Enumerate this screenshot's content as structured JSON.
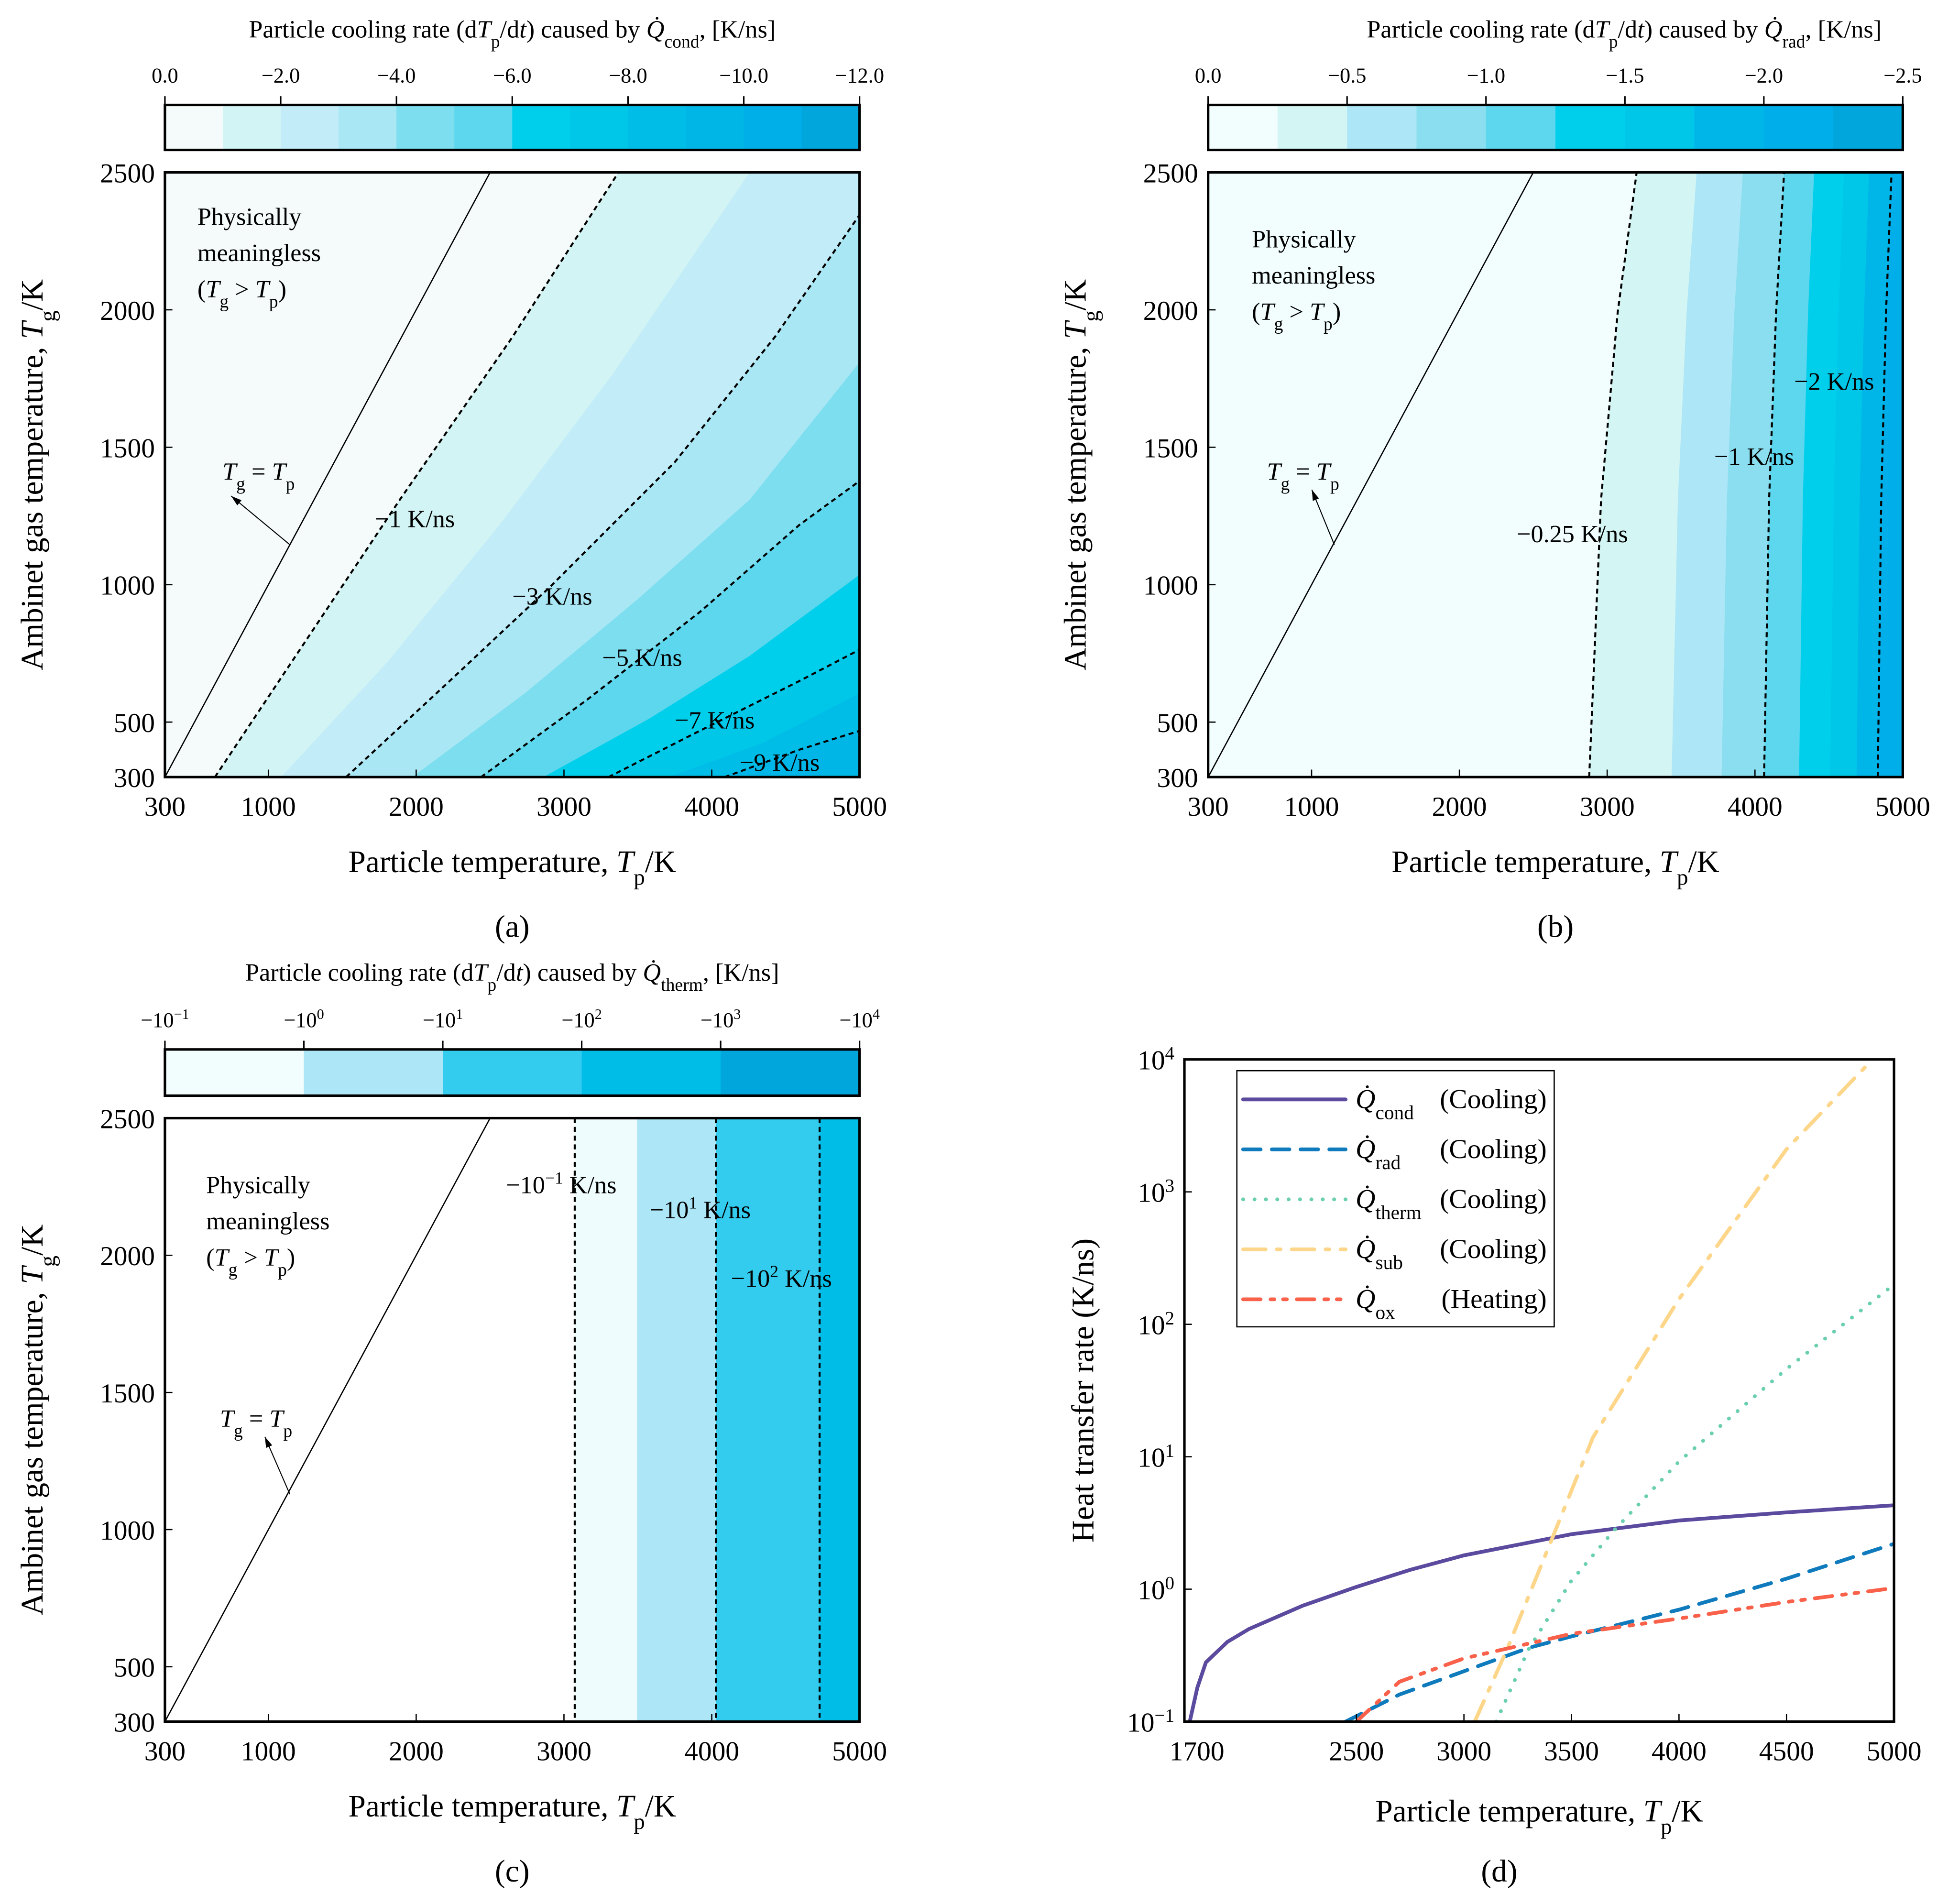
{
  "panels": {
    "a": {
      "label": "(a)",
      "cb_title": {
        "pre": "Particle cooling rate (d",
        "T": "T",
        "p": "p",
        "mid": "/d",
        "t": "t",
        "post1": ") caused by ",
        "Q": "Q̇",
        "sub": "cond",
        "post2": ", [K/ns]"
      },
      "cb_ticks": [
        "0.0",
        "−2.0",
        "−4.0",
        "−6.0",
        "−8.0",
        "−10.0",
        "−12.0"
      ],
      "cb_range": [
        0,
        -12
      ],
      "cb_colors": [
        "#f5fbfb",
        "#d3f4f4",
        "#c1ecf8",
        "#a9e7f5",
        "#7cdeef",
        "#5dd7ee",
        "#00cfec",
        "#00c6e8",
        "#00bde8",
        "#00b6e6",
        "#00aee8",
        "#00a6dc"
      ],
      "contour_labels": [
        "−1 K/ns",
        "−3 K/ns",
        "−5 K/ns",
        "−7 K/ns",
        "−9 K/ns"
      ],
      "contour_levels": [
        -1,
        -3,
        -5,
        -7,
        -9
      ],
      "region_text": [
        "Physically",
        "meaningless"
      ],
      "region_cond": {
        "open": "(",
        "T1": "T",
        "s1": "g",
        "op": " > ",
        "T2": "T",
        "s2": "p",
        "close": ")"
      },
      "equal_label": {
        "T1": "T",
        "s1": "g",
        "eq": " = ",
        "T2": "T",
        "s2": "p"
      }
    },
    "b": {
      "label": "(b)",
      "cb_title": {
        "pre": "Particle cooling rate (d",
        "T": "T",
        "p": "p",
        "mid": "/d",
        "t": "t",
        "post1": ") caused by ",
        "Q": "Q̇",
        "sub": "rad",
        "post2": ", [K/ns]"
      },
      "cb_ticks": [
        "0.0",
        "−0.5",
        "−1.0",
        "−1.5",
        "−2.0",
        "−2.5"
      ],
      "cb_range": [
        0,
        -2.5
      ],
      "cb_colors": [
        "#f2fdfd",
        "#d3f5f4",
        "#ade6f6",
        "#8adeef",
        "#5dd7ee",
        "#00cfec",
        "#00c6e8",
        "#00b6e8",
        "#00aeea",
        "#00a6dc"
      ],
      "contour_labels": [
        "−0.25 K/ns",
        "−1 K/ns",
        "−2 K/ns"
      ],
      "contour_levels": [
        -0.25,
        -1,
        -2
      ],
      "region_text": [
        "Physically",
        "meaningless"
      ],
      "region_cond": {
        "open": "(",
        "T1": "T",
        "s1": "g",
        "op": " > ",
        "T2": "T",
        "s2": "p",
        "close": ")"
      },
      "equal_label": {
        "T1": "T",
        "s1": "g",
        "eq": " = ",
        "T2": "T",
        "s2": "p"
      }
    },
    "c": {
      "label": "(c)",
      "cb_title": {
        "pre": "Particle cooling rate (d",
        "T": "T",
        "p": "p",
        "mid": "/d",
        "t": "t",
        "post1": ") caused by ",
        "Q": "Q̇",
        "sub": "therm",
        "post2": ", [K/ns]"
      },
      "cb_ticks": [
        {
          "base": "−10",
          "exp": "-1"
        },
        {
          "base": "−10",
          "exp": "0"
        },
        {
          "base": "−10",
          "exp": "1"
        },
        {
          "base": "−10",
          "exp": "2"
        },
        {
          "base": "−10",
          "exp": "3"
        },
        {
          "base": "−10",
          "exp": "4"
        }
      ],
      "cb_range": [
        -1,
        4
      ],
      "cb_colors": [
        "#f2fdfd",
        "#ade6f6",
        "#33cbee",
        "#00bde8",
        "#00a6dc"
      ],
      "contour_labels": [
        {
          "pre": "−10",
          "sup": "−1",
          "post": " K/ns"
        },
        {
          "pre": "−10",
          "sup": "1",
          "post": " K/ns"
        },
        {
          "pre": "−10",
          "sup": "2",
          "post": " K/ns"
        }
      ],
      "region_text": [
        "Physically",
        "meaningless"
      ],
      "region_cond": {
        "open": "(",
        "T1": "T",
        "s1": "g",
        "op": " > ",
        "T2": "T",
        "s2": "p",
        "close": ")"
      },
      "equal_label": {
        "T1": "T",
        "s1": "g",
        "eq": " = ",
        "T2": "T",
        "s2": "p"
      }
    }
  },
  "contour_axes": {
    "x_ticks": [
      "300",
      "1000",
      "2000",
      "3000",
      "4000",
      "5000"
    ],
    "x_values": [
      300,
      1000,
      2000,
      3000,
      4000,
      5000
    ],
    "y_ticks": [
      "300",
      "500",
      "1000",
      "1500",
      "2000",
      "2500"
    ],
    "y_values": [
      300,
      500,
      1000,
      1500,
      2000,
      2500
    ],
    "xlim": [
      300,
      5000
    ],
    "ylim": [
      300,
      2500
    ],
    "xlabel": {
      "pre": "Particle temperature, ",
      "T": "T",
      "sub": "p",
      "post": "/K"
    },
    "ylabel": {
      "pre": "Ambinet gas temperature, ",
      "T": "T",
      "sub": "g",
      "post": "/K"
    }
  },
  "chart_data": {
    "type": "line",
    "panel_label": "(d)",
    "xlabel": {
      "pre": "Particle temperature, ",
      "T": "T",
      "sub": "p",
      "post": "/K"
    },
    "ylabel": "Heat transfer rate (K/ns)",
    "xlim": [
      1700,
      5000
    ],
    "ylim": [
      0.1,
      10000
    ],
    "yscale": "log",
    "x_ticks": [
      "1700",
      "2500",
      "3000",
      "3500",
      "4000",
      "4500",
      "5000"
    ],
    "x_tick_values": [
      1700,
      2500,
      3000,
      3500,
      4000,
      4500,
      5000
    ],
    "y_ticks": [
      {
        "base": "10",
        "exp": "-1"
      },
      {
        "base": "10",
        "exp": "0"
      },
      {
        "base": "10",
        "exp": "1"
      },
      {
        "base": "10",
        "exp": "2"
      },
      {
        "base": "10",
        "exp": "3"
      },
      {
        "base": "10",
        "exp": "4"
      }
    ],
    "legend_position": "top-left",
    "series": [
      {
        "name": "Q̇",
        "sub": "cond",
        "note": "(Cooling)",
        "color": "#5b4a9e",
        "dash": "solid",
        "x": [
          1725,
          1760,
          1800,
          1900,
          2000,
          2250,
          2500,
          2750,
          3000,
          3500,
          4000,
          4500,
          5000
        ],
        "y": [
          0.1,
          0.18,
          0.28,
          0.4,
          0.5,
          0.75,
          1.04,
          1.4,
          1.8,
          2.6,
          3.3,
          3.8,
          4.3
        ]
      },
      {
        "name": "Q̇",
        "sub": "rad",
        "note": "(Cooling)",
        "color": "#0f7bbd",
        "dash": "dashed",
        "x": [
          2450,
          2700,
          3000,
          3300,
          3500,
          4000,
          4500,
          5000
        ],
        "y": [
          0.1,
          0.16,
          0.24,
          0.36,
          0.44,
          0.7,
          1.2,
          2.2
        ]
      },
      {
        "name": "Q̇",
        "sub": "therm",
        "note": "(Cooling)",
        "color": "#6acfb0",
        "dash": "dotted",
        "x": [
          3150,
          3300,
          3500,
          3700,
          4000,
          4500,
          5000
        ],
        "y": [
          0.1,
          0.35,
          1.16,
          2.8,
          9.2,
          46,
          200
        ]
      },
      {
        "name": "Q̇",
        "sub": "sub",
        "note": "(Cooling)",
        "color": "#fdd68a",
        "dash": "dash-dot",
        "x": [
          3050,
          3200,
          3400,
          3600,
          4000,
          4500,
          4900
        ],
        "y": [
          0.1,
          0.35,
          2.2,
          14,
          155,
          2100,
          10000
        ]
      },
      {
        "name": "Q̇",
        "sub": "ox",
        "note": "(Heating)",
        "color": "#f9614a",
        "dash": "dash-dot-dot",
        "x": [
          2500,
          2700,
          3000,
          3500,
          4000,
          4500,
          5000
        ],
        "y": [
          0.1,
          0.2,
          0.3,
          0.46,
          0.6,
          0.8,
          1.02
        ]
      }
    ]
  }
}
